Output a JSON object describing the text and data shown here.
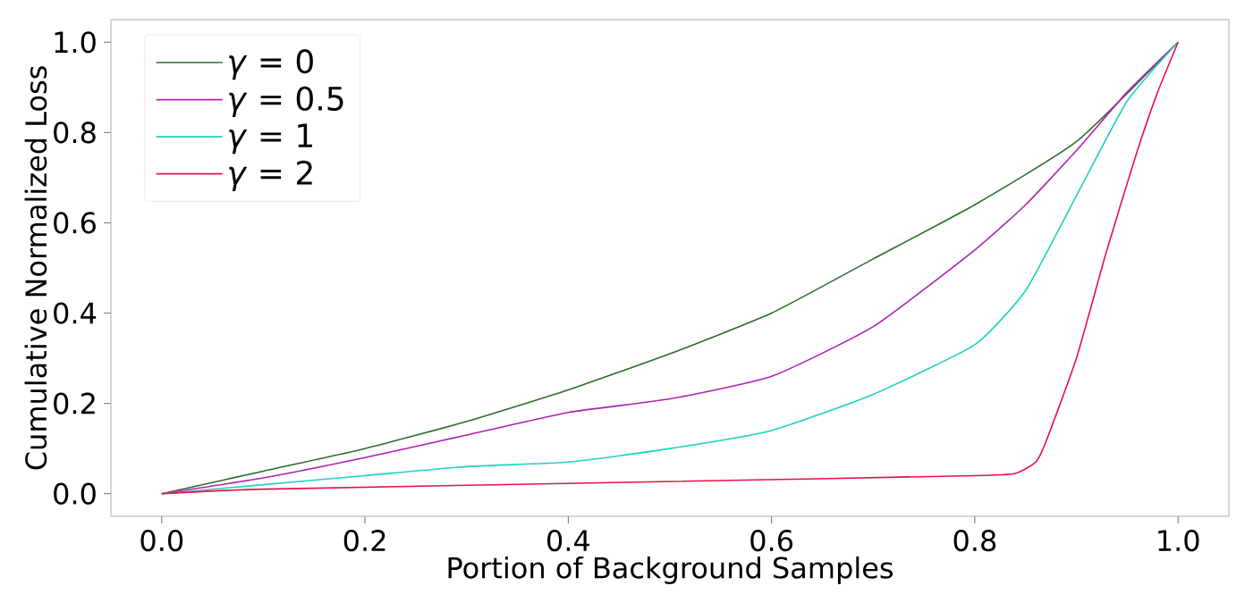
{
  "chart_data": {
    "type": "line",
    "xlabel": "Portion of Background Samples",
    "ylabel": "Cumulative Normalized Loss",
    "xlim": [
      -0.05,
      1.05
    ],
    "ylim": [
      -0.05,
      1.05
    ],
    "xticks": [
      {
        "value": 0,
        "label": "0.0"
      },
      0.2,
      0.4,
      0.6,
      0.8,
      {
        "value": 1,
        "label": "1.0"
      }
    ],
    "yticks": [
      {
        "value": 0,
        "label": "0.0"
      },
      0.2,
      0.4,
      0.6,
      0.8,
      {
        "value": 1,
        "label": "1.0"
      }
    ],
    "legend": "top left",
    "grid": false,
    "series": [
      {
        "name": "*γ* = 0",
        "color": "#2e6b2e",
        "x": [
          0,
          0.1,
          0.2,
          0.3,
          0.4,
          0.5,
          0.6,
          0.7,
          0.8,
          0.9,
          1.0
        ],
        "values": [
          0,
          0.05,
          0.1,
          0.16,
          0.23,
          0.31,
          0.4,
          0.52,
          0.64,
          0.78,
          1.0
        ]
      },
      {
        "name": "*γ* = 0.5",
        "color": "#b020b0",
        "x": [
          0,
          0.1,
          0.2,
          0.3,
          0.4,
          0.5,
          0.6,
          0.7,
          0.8,
          0.85,
          0.9,
          0.95,
          1.0
        ],
        "values": [
          0,
          0.035,
          0.08,
          0.13,
          0.18,
          0.21,
          0.26,
          0.37,
          0.54,
          0.64,
          0.76,
          0.89,
          1.0
        ]
      },
      {
        "name": "*γ* = 1",
        "color": "#20d0c0",
        "x": [
          0,
          0.1,
          0.2,
          0.3,
          0.4,
          0.5,
          0.6,
          0.7,
          0.8,
          0.85,
          0.9,
          0.95,
          1.0
        ],
        "values": [
          0,
          0.02,
          0.04,
          0.06,
          0.07,
          0.1,
          0.14,
          0.22,
          0.33,
          0.45,
          0.66,
          0.87,
          1.0
        ]
      },
      {
        "name": "*γ* = 2",
        "color": "#e8104a",
        "x": [
          0,
          0.1,
          0.5,
          0.8,
          0.84,
          0.86,
          0.87,
          0.9,
          0.93,
          0.96,
          0.98,
          1.0
        ],
        "values": [
          0,
          0.01,
          0.027,
          0.04,
          0.045,
          0.07,
          0.115,
          0.3,
          0.54,
          0.76,
          0.89,
          1.0
        ]
      }
    ]
  }
}
